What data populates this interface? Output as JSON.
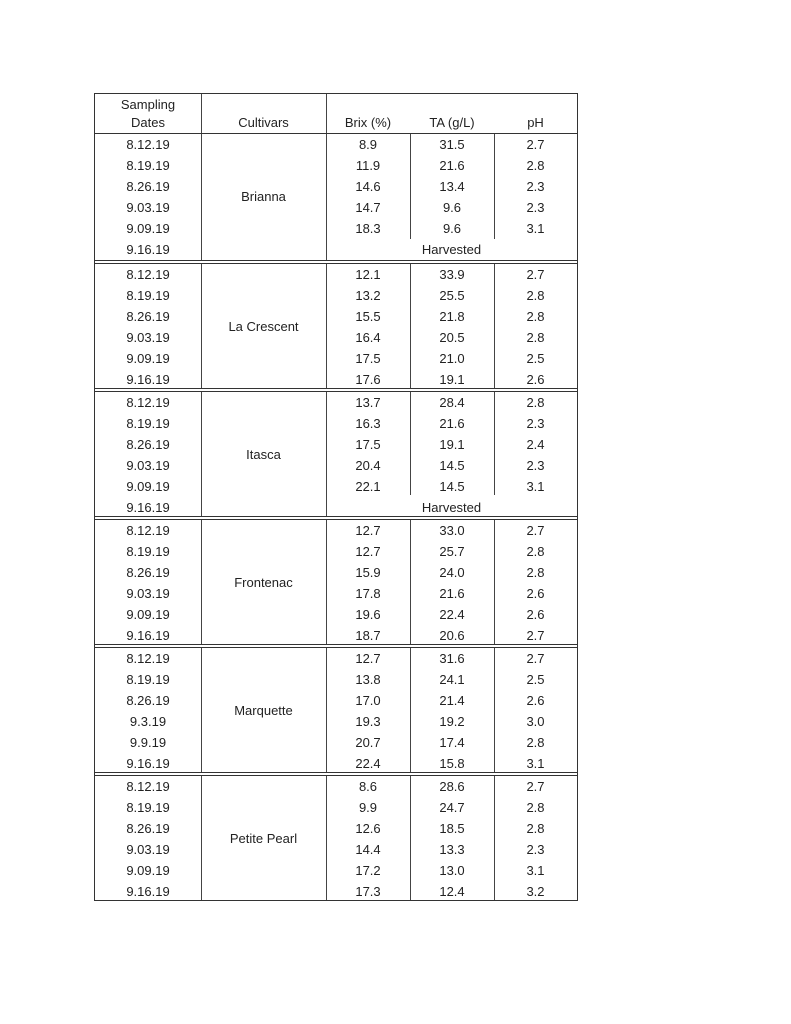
{
  "headers": {
    "date_line1": "Sampling",
    "date_line2": "Dates",
    "cultivar": "Cultivars",
    "brix": "Brix (%)",
    "ta": "TA (g/L)",
    "ph": "pH"
  },
  "groups": [
    {
      "cultivar": "Brianna",
      "rows": [
        {
          "date": "8.12.19",
          "brix": "8.9",
          "ta": "31.5",
          "ph": "2.7"
        },
        {
          "date": "8.19.19",
          "brix": "11.9",
          "ta": "21.6",
          "ph": "2.8"
        },
        {
          "date": "8.26.19",
          "brix": "14.6",
          "ta": "13.4",
          "ph": "2.3"
        },
        {
          "date": "9.03.19",
          "brix": "14.7",
          "ta": "9.6",
          "ph": "2.3"
        },
        {
          "date": "9.09.19",
          "brix": "18.3",
          "ta": "9.6",
          "ph": "3.1"
        },
        {
          "date": "9.16.19",
          "note": "Harvested"
        }
      ]
    },
    {
      "cultivar": "La Crescent",
      "rows": [
        {
          "date": "8.12.19",
          "brix": "12.1",
          "ta": "33.9",
          "ph": "2.7"
        },
        {
          "date": "8.19.19",
          "brix": "13.2",
          "ta": "25.5",
          "ph": "2.8"
        },
        {
          "date": "8.26.19",
          "brix": "15.5",
          "ta": "21.8",
          "ph": "2.8"
        },
        {
          "date": "9.03.19",
          "brix": "16.4",
          "ta": "20.5",
          "ph": "2.8"
        },
        {
          "date": "9.09.19",
          "brix": "17.5",
          "ta": "21.0",
          "ph": "2.5"
        },
        {
          "date": "9.16.19",
          "brix": "17.6",
          "ta": "19.1",
          "ph": "2.6"
        }
      ]
    },
    {
      "cultivar": "Itasca",
      "rows": [
        {
          "date": "8.12.19",
          "brix": "13.7",
          "ta": "28.4",
          "ph": "2.8"
        },
        {
          "date": "8.19.19",
          "brix": "16.3",
          "ta": "21.6",
          "ph": "2.3"
        },
        {
          "date": "8.26.19",
          "brix": "17.5",
          "ta": "19.1",
          "ph": "2.4"
        },
        {
          "date": "9.03.19",
          "brix": "20.4",
          "ta": "14.5",
          "ph": "2.3"
        },
        {
          "date": "9.09.19",
          "brix": "22.1",
          "ta": "14.5",
          "ph": "3.1"
        },
        {
          "date": "9.16.19",
          "note": "Harvested"
        }
      ]
    },
    {
      "cultivar": "Frontenac",
      "rows": [
        {
          "date": "8.12.19",
          "brix": "12.7",
          "ta": "33.0",
          "ph": "2.7"
        },
        {
          "date": "8.19.19",
          "brix": "12.7",
          "ta": "25.7",
          "ph": "2.8"
        },
        {
          "date": "8.26.19",
          "brix": "15.9",
          "ta": "24.0",
          "ph": "2.8"
        },
        {
          "date": "9.03.19",
          "brix": "17.8",
          "ta": "21.6",
          "ph": "2.6"
        },
        {
          "date": "9.09.19",
          "brix": "19.6",
          "ta": "22.4",
          "ph": "2.6"
        },
        {
          "date": "9.16.19",
          "brix": "18.7",
          "ta": "20.6",
          "ph": "2.7"
        }
      ]
    },
    {
      "cultivar": "Marquette",
      "rows": [
        {
          "date": "8.12.19",
          "brix": "12.7",
          "ta": "31.6",
          "ph": "2.7"
        },
        {
          "date": "8.19.19",
          "brix": "13.8",
          "ta": "24.1",
          "ph": "2.5"
        },
        {
          "date": "8.26.19",
          "brix": "17.0",
          "ta": "21.4",
          "ph": "2.6"
        },
        {
          "date": "9.3.19",
          "brix": "19.3",
          "ta": "19.2",
          "ph": "3.0"
        },
        {
          "date": "9.9.19",
          "brix": "20.7",
          "ta": "17.4",
          "ph": "2.8"
        },
        {
          "date": "9.16.19",
          "brix": "22.4",
          "ta": "15.8",
          "ph": "3.1"
        }
      ]
    },
    {
      "cultivar": "Petite Pearl",
      "rows": [
        {
          "date": "8.12.19",
          "brix": "8.6",
          "ta": "28.6",
          "ph": "2.7"
        },
        {
          "date": "8.19.19",
          "brix": "9.9",
          "ta": "24.7",
          "ph": "2.8"
        },
        {
          "date": "8.26.19",
          "brix": "12.6",
          "ta": "18.5",
          "ph": "2.8"
        },
        {
          "date": "9.03.19",
          "brix": "14.4",
          "ta": "13.3",
          "ph": "2.3"
        },
        {
          "date": "9.09.19",
          "brix": "17.2",
          "ta": "13.0",
          "ph": "3.1"
        },
        {
          "date": "9.16.19",
          "brix": "17.3",
          "ta": "12.4",
          "ph": "3.2"
        }
      ]
    }
  ]
}
